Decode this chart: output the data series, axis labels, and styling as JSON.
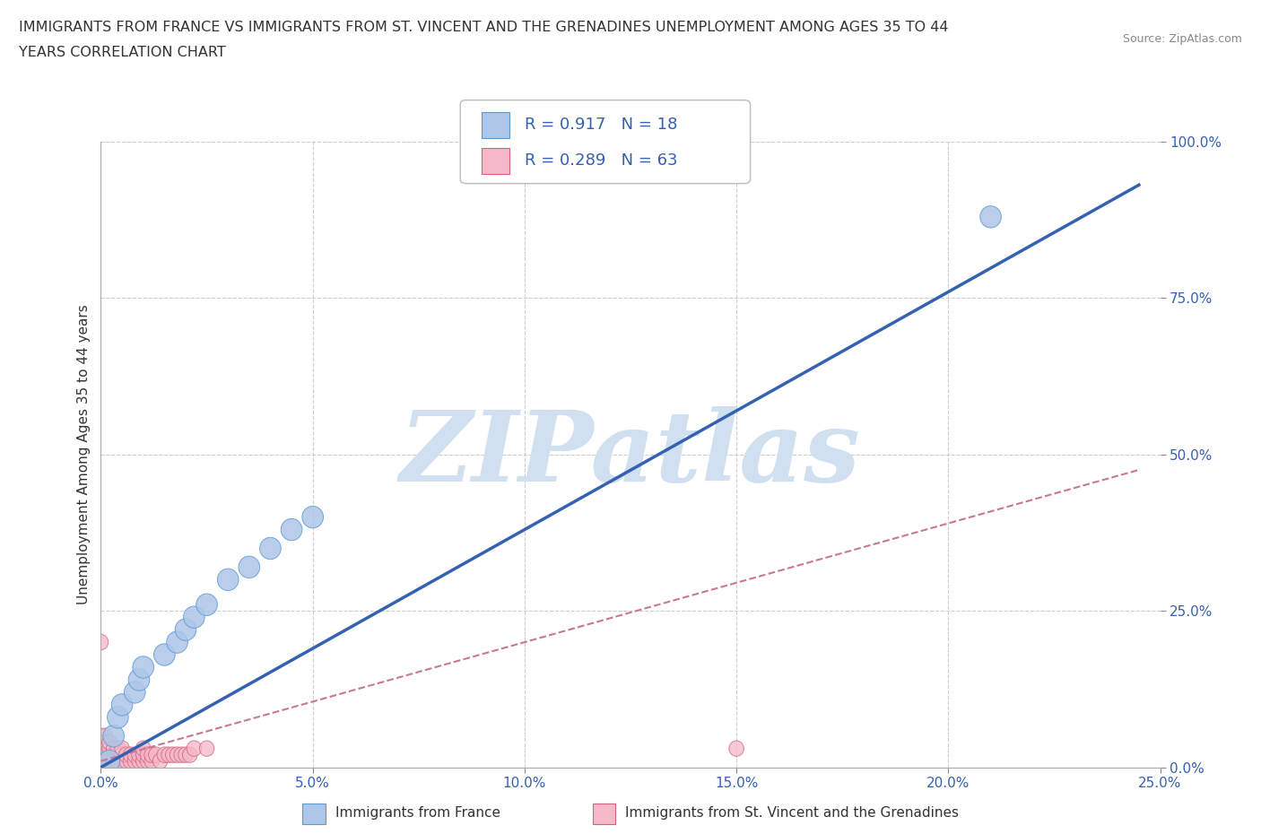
{
  "title_line1": "IMMIGRANTS FROM FRANCE VS IMMIGRANTS FROM ST. VINCENT AND THE GRENADINES UNEMPLOYMENT AMONG AGES 35 TO 44",
  "title_line2": "YEARS CORRELATION CHART",
  "source": "Source: ZipAtlas.com",
  "ylabel": "Unemployment Among Ages 35 to 44 years",
  "xlim": [
    0,
    0.25
  ],
  "ylim": [
    0,
    1.0
  ],
  "xticks": [
    0.0,
    0.05,
    0.1,
    0.15,
    0.2,
    0.25
  ],
  "yticks": [
    0.0,
    0.25,
    0.5,
    0.75,
    1.0
  ],
  "xtick_labels": [
    "0.0%",
    "5.0%",
    "10.0%",
    "15.0%",
    "20.0%",
    "25.0%"
  ],
  "ytick_labels": [
    "0.0%",
    "25.0%",
    "50.0%",
    "75.0%",
    "100.0%"
  ],
  "france_color": "#aec6e8",
  "france_edge_color": "#5b9bd5",
  "stvincent_color": "#f4b8c8",
  "stvincent_edge_color": "#d4607a",
  "france_R": 0.917,
  "france_N": 18,
  "stvincent_R": 0.289,
  "stvincent_N": 63,
  "france_line_color": "#3461b0",
  "stvincent_line_color": "#c87890",
  "watermark": "ZIPatlas",
  "watermark_color": "#d0e0f0",
  "legend_text_color": "#3461b0",
  "background_color": "#ffffff",
  "france_points_x": [
    0.002,
    0.003,
    0.004,
    0.005,
    0.008,
    0.009,
    0.01,
    0.015,
    0.018,
    0.02,
    0.022,
    0.025,
    0.03,
    0.035,
    0.04,
    0.045,
    0.05,
    0.21
  ],
  "france_points_y": [
    0.01,
    0.05,
    0.08,
    0.1,
    0.12,
    0.14,
    0.16,
    0.18,
    0.2,
    0.22,
    0.24,
    0.26,
    0.3,
    0.32,
    0.35,
    0.38,
    0.4,
    0.88
  ],
  "stvincent_points_x": [
    0.0,
    0.0,
    0.0,
    0.0,
    0.0,
    0.0,
    0.0,
    0.0,
    0.0,
    0.0,
    0.0,
    0.0,
    0.0,
    0.0,
    0.0,
    0.001,
    0.001,
    0.001,
    0.001,
    0.001,
    0.001,
    0.002,
    0.002,
    0.002,
    0.002,
    0.002,
    0.003,
    0.003,
    0.003,
    0.003,
    0.004,
    0.004,
    0.004,
    0.005,
    0.005,
    0.005,
    0.006,
    0.006,
    0.007,
    0.007,
    0.008,
    0.008,
    0.009,
    0.009,
    0.01,
    0.01,
    0.01,
    0.011,
    0.011,
    0.012,
    0.012,
    0.013,
    0.014,
    0.015,
    0.016,
    0.017,
    0.018,
    0.019,
    0.02,
    0.021,
    0.022,
    0.15,
    0.025
  ],
  "stvincent_points_y": [
    0.0,
    0.0,
    0.0,
    0.0,
    0.0,
    0.0,
    0.0,
    0.0,
    0.0,
    0.01,
    0.02,
    0.03,
    0.04,
    0.05,
    0.2,
    0.0,
    0.01,
    0.02,
    0.03,
    0.04,
    0.05,
    0.0,
    0.01,
    0.02,
    0.03,
    0.04,
    0.0,
    0.01,
    0.02,
    0.03,
    0.01,
    0.02,
    0.03,
    0.01,
    0.02,
    0.03,
    0.01,
    0.02,
    0.01,
    0.02,
    0.01,
    0.02,
    0.01,
    0.02,
    0.01,
    0.02,
    0.03,
    0.01,
    0.02,
    0.01,
    0.02,
    0.02,
    0.01,
    0.02,
    0.02,
    0.02,
    0.02,
    0.02,
    0.02,
    0.02,
    0.03,
    0.03,
    0.03
  ],
  "fr_slope": 3.8,
  "fr_intercept": 0.0,
  "fr_line_xend": 0.245,
  "sv_slope": 1.9,
  "sv_intercept": 0.01,
  "sv_line_xend": 0.245
}
